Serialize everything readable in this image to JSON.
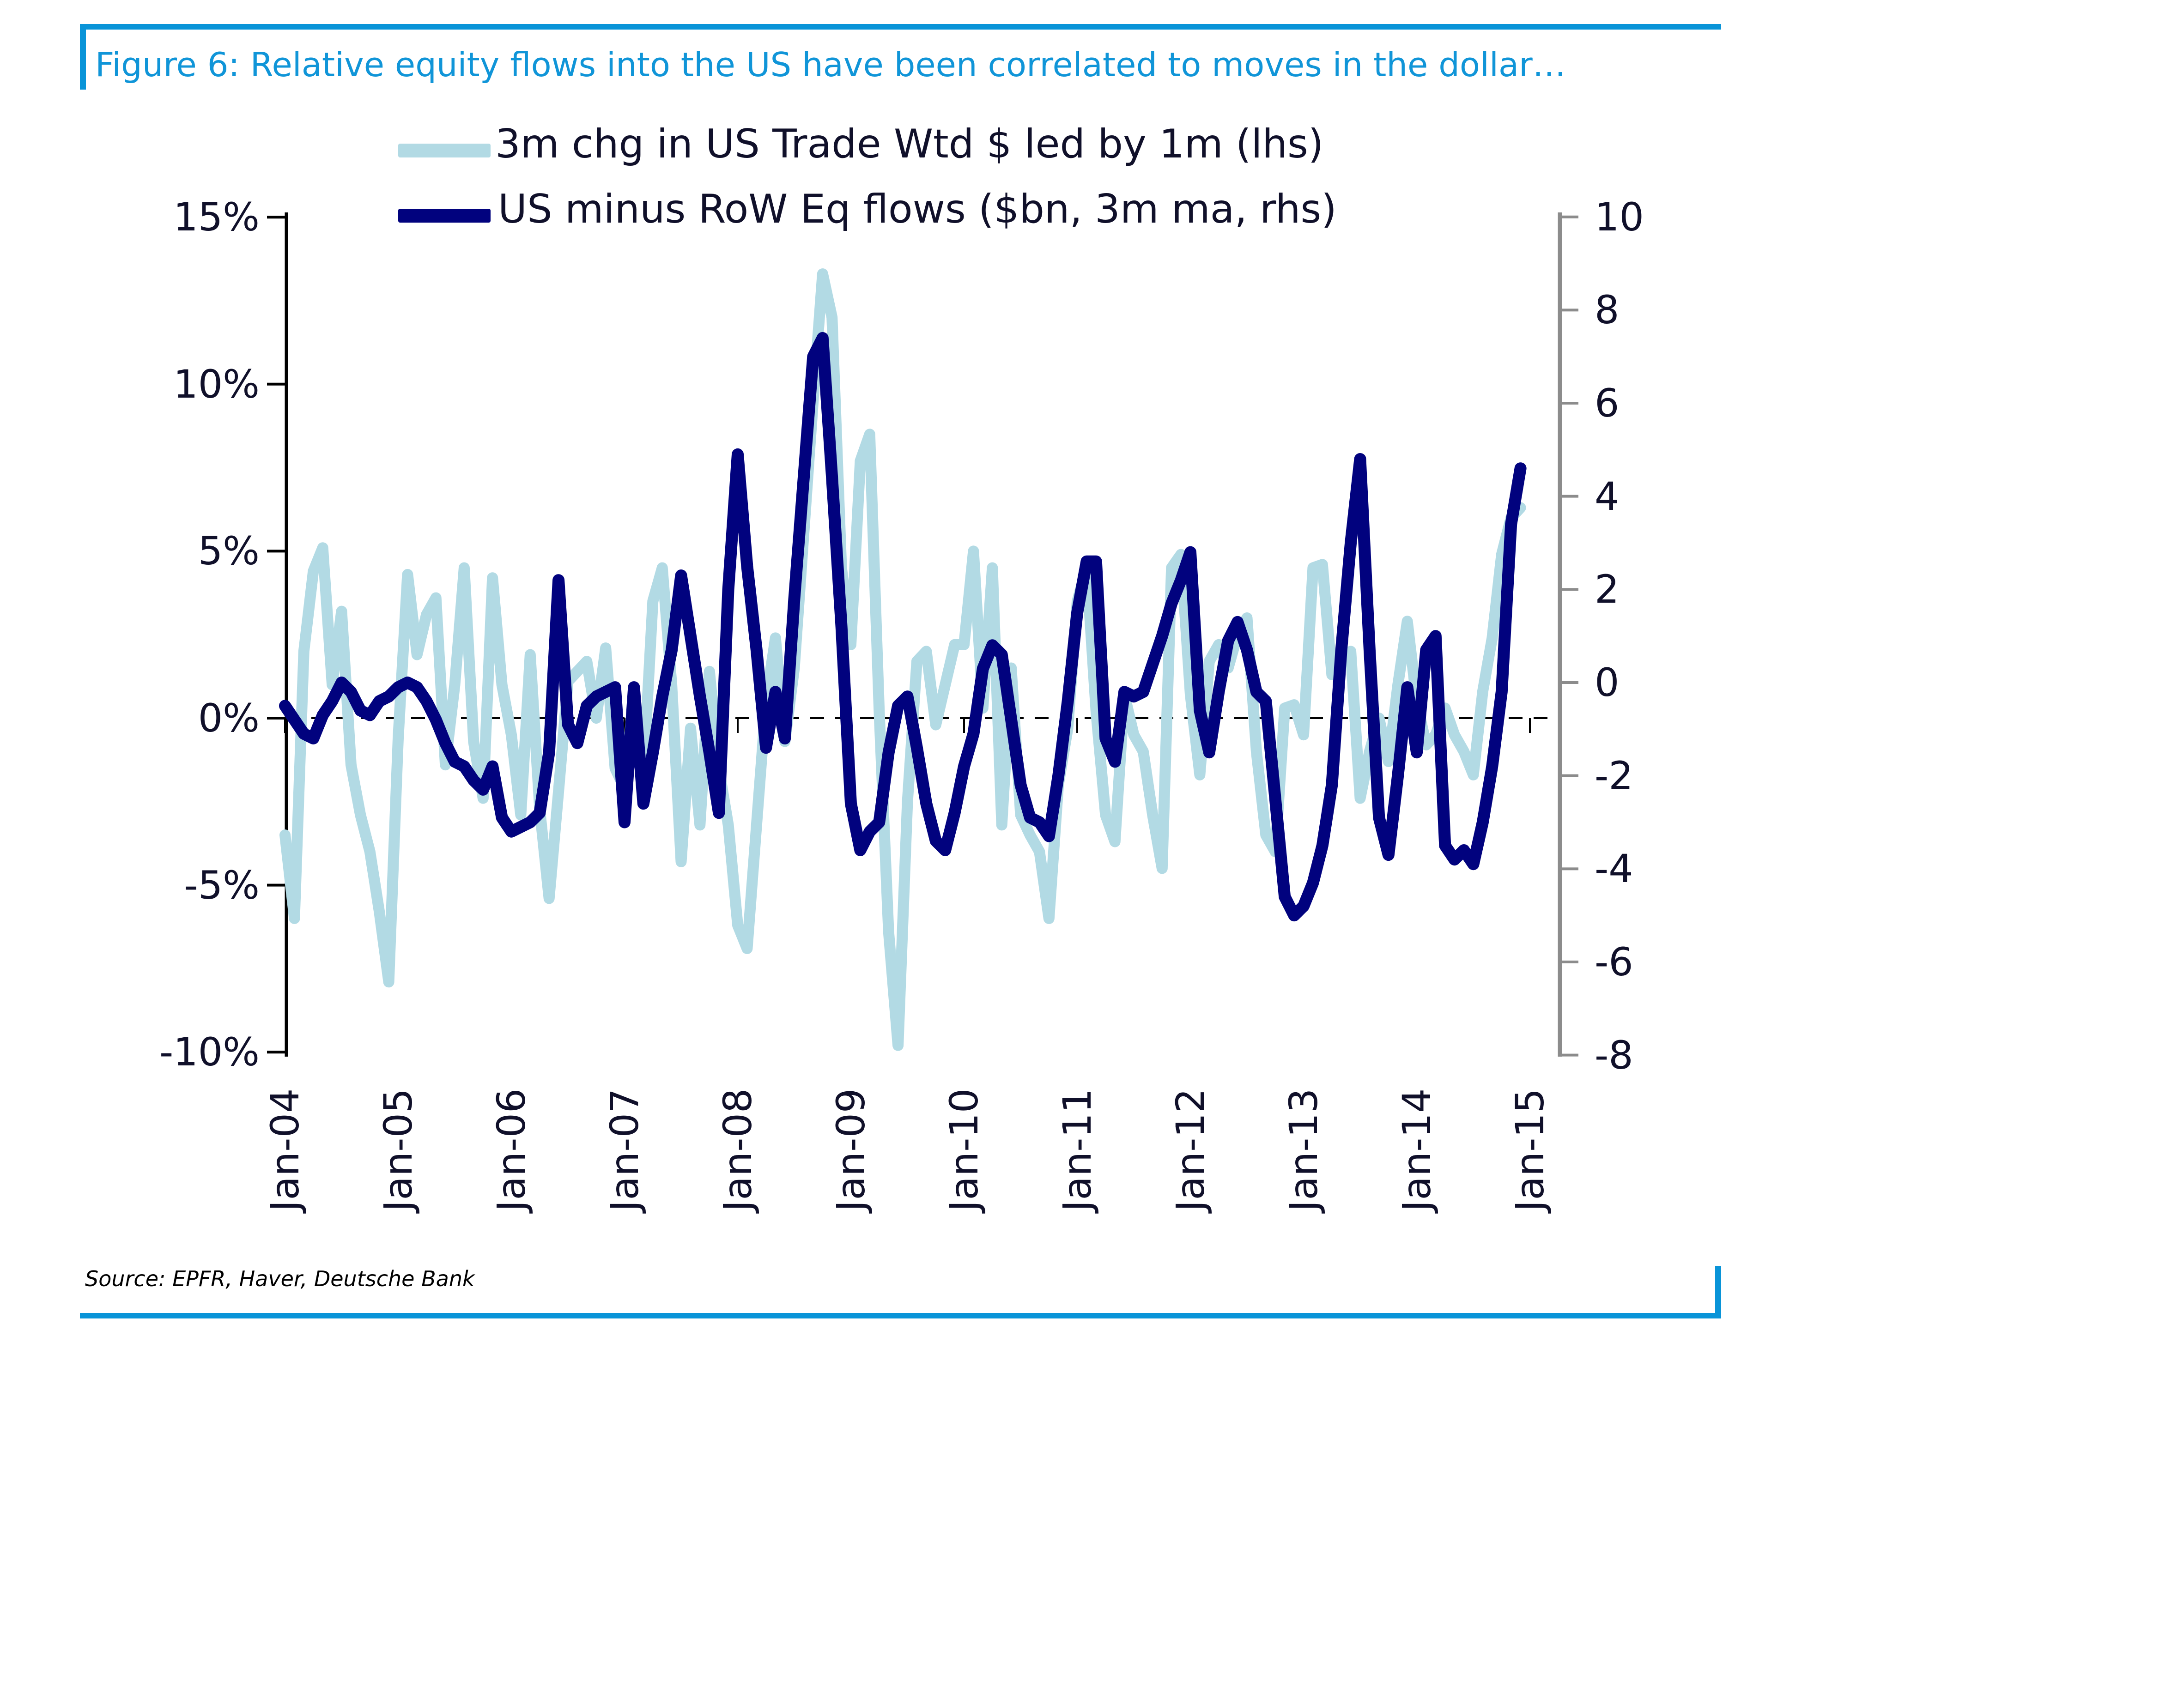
{
  "figure": {
    "title": "Figure 6: Relative equity flows into the US have been correlated to moves in the dollar…",
    "source": "Source: EPFR, Haver,  Deutsche Bank",
    "accent_color": "#0994d8",
    "title_color": "#1095d8"
  },
  "chart_data": {
    "type": "line",
    "title": "Figure 6: Relative equity flows into the US have been correlated to moves in the dollar…",
    "frequency": "monthly",
    "start_month": "2004-01",
    "end_month": "2014-12",
    "grid": "off",
    "zero_line": "dashed horizontal line at left-axis 0%",
    "legend_position": "top-center",
    "x_tick_labels": [
      "Jan-04",
      "Jan-05",
      "Jan-06",
      "Jan-07",
      "Jan-08",
      "Jan-09",
      "Jan-10",
      "Jan-11",
      "Jan-12",
      "Jan-13",
      "Jan-14",
      "Jan-15"
    ],
    "left_axis": {
      "ticks": [
        "15%",
        "10%",
        "5%",
        "0%",
        "-5%",
        "-10%"
      ],
      "ylim": [
        -10,
        15
      ],
      "color": "#000000"
    },
    "right_axis": {
      "ticks": [
        "10",
        "8",
        "6",
        "4",
        "2",
        "0",
        "-2",
        "-4",
        "-6",
        "-8"
      ],
      "ylim": [
        -8,
        10
      ],
      "color": "#8c8c8c"
    },
    "series": [
      {
        "name": "3m chg in US Trade Wtd $ led by 1m (lhs)",
        "axis": "left",
        "color": "#b2dae4",
        "units": "%",
        "values": [
          -3.5,
          -6.0,
          2.0,
          4.4,
          5.1,
          1.0,
          3.2,
          -1.4,
          -2.9,
          -4.0,
          -5.8,
          -7.9,
          -0.6,
          4.3,
          1.9,
          3.1,
          3.6,
          -1.4,
          1.0,
          4.5,
          -0.7,
          -2.4,
          4.2,
          1.0,
          -0.5,
          -2.9,
          1.9,
          -2.7,
          -5.4,
          -2.2,
          1.1,
          1.4,
          1.7,
          0.0,
          2.1,
          -1.5,
          -2.1,
          0.8,
          -1.7,
          3.5,
          4.5,
          1.0,
          -4.3,
          -0.3,
          -3.2,
          1.4,
          -1.5,
          -3.2,
          -6.2,
          -6.9,
          -3.2,
          0.5,
          2.4,
          -0.7,
          1.5,
          5.5,
          9.5,
          13.3,
          12.0,
          4.5,
          2.2,
          7.7,
          8.5,
          0.2,
          -6.4,
          -9.8,
          -2.5,
          1.7,
          2.0,
          -0.2,
          1.0,
          2.2,
          2.2,
          5.0,
          0.3,
          4.5,
          -3.2,
          1.5,
          -2.9,
          -3.5,
          -4.0,
          -6.0,
          -2.0,
          -0.3,
          3.5,
          4.5,
          0.2,
          -2.9,
          -3.7,
          0.7,
          -0.5,
          -1.0,
          -2.9,
          -4.5,
          4.5,
          4.9,
          0.7,
          -1.7,
          1.7,
          2.2,
          1.5,
          2.5,
          3.0,
          -1.0,
          -3.5,
          -4.0,
          0.3,
          0.4,
          -0.5,
          4.5,
          4.6,
          1.3,
          1.8,
          2.0,
          -2.4,
          -1.0,
          0.0,
          -1.3,
          1.0,
          2.9,
          0.5,
          -0.8,
          -0.5,
          0.3,
          -0.5,
          -1.0,
          -1.7,
          0.8,
          2.4,
          4.9,
          6.0,
          6.3
        ]
      },
      {
        "name": "US minus RoW Eq flows ($bn, 3m ma, rhs)",
        "axis": "right",
        "color": "#01027e",
        "units": "$bn",
        "values": [
          -0.5,
          -0.8,
          -1.1,
          -1.2,
          -0.7,
          -0.4,
          0.0,
          -0.2,
          -0.6,
          -0.7,
          -0.4,
          -0.3,
          -0.1,
          0.0,
          -0.1,
          -0.4,
          -0.8,
          -1.3,
          -1.7,
          -1.8,
          -2.1,
          -2.3,
          -1.8,
          -2.9,
          -3.2,
          -3.1,
          -3.0,
          -2.8,
          -1.5,
          2.2,
          -0.9,
          -1.3,
          -0.5,
          -0.3,
          -0.2,
          -0.1,
          -3.0,
          -0.1,
          -2.6,
          -1.5,
          -0.3,
          0.7,
          2.3,
          1.0,
          -0.3,
          -1.5,
          -2.8,
          2.0,
          4.9,
          2.5,
          0.7,
          -1.4,
          -0.2,
          -1.2,
          1.8,
          4.4,
          7.0,
          7.4,
          4.4,
          1.2,
          -2.6,
          -3.6,
          -3.2,
          -3.0,
          -1.5,
          -0.5,
          -0.3,
          -1.4,
          -2.6,
          -3.4,
          -3.6,
          -2.8,
          -1.8,
          -1.1,
          0.3,
          0.8,
          0.6,
          -0.8,
          -2.2,
          -2.9,
          -3.0,
          -3.3,
          -2.0,
          -0.4,
          1.5,
          2.6,
          2.6,
          -1.2,
          -1.7,
          -0.2,
          -0.3,
          -0.2,
          0.4,
          1.0,
          1.7,
          2.2,
          2.8,
          -0.6,
          -1.5,
          -0.2,
          0.9,
          1.3,
          0.7,
          -0.2,
          -0.4,
          -2.5,
          -4.6,
          -5.0,
          -4.8,
          -4.3,
          -3.5,
          -2.2,
          0.7,
          3.0,
          4.8,
          0.7,
          -2.9,
          -3.7,
          -2.0,
          -0.1,
          -1.5,
          0.7,
          1.0,
          -3.5,
          -3.8,
          -3.6,
          -3.9,
          -3.0,
          -1.8,
          -0.2,
          3.4,
          4.6
        ]
      }
    ]
  }
}
